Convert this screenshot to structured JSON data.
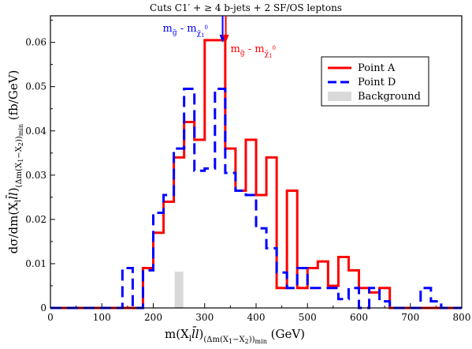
{
  "chart_data": {
    "type": "line",
    "title": "Cuts C1′ + ≥ 4 b-jets + 2 SF/OS leptons",
    "xlabel": "m(X_l l̄l)_(Δm(X1−X2))min  (GeV)",
    "ylabel": "dσ/dm(X_l l̄l)_(Δm(X1−X2))min  (fb/GeV)",
    "xlim": [
      0,
      800
    ],
    "ylim": [
      0,
      0.066
    ],
    "xticks": [
      "0",
      "100",
      "200",
      "300",
      "400",
      "500",
      "600",
      "700",
      "800"
    ],
    "yticks": [
      "0",
      "0.01",
      "0.02",
      "0.03",
      "0.04",
      "0.05",
      "0.06"
    ],
    "legend_position": "top-right",
    "bin_width": 20,
    "series": [
      {
        "name": "Point A",
        "color": "#ff0000",
        "dash": "solid",
        "x": [
          180,
          200,
          220,
          240,
          260,
          280,
          300,
          320,
          340,
          360,
          380,
          400,
          420,
          440,
          460,
          480,
          500,
          520,
          540,
          560,
          580,
          600,
          620,
          640
        ],
        "values": [
          0.009,
          0.017,
          0.024,
          0.034,
          0.042,
          0.038,
          0.0605,
          0.0605,
          0.036,
          0.0265,
          0.038,
          0.0255,
          0.034,
          0.0045,
          0.0265,
          0.0045,
          0.009,
          0.0105,
          0.005,
          0.0115,
          0.0085,
          0.0045,
          0.0035,
          0.0045
        ]
      },
      {
        "name": "Point D",
        "color": "#0000ff",
        "dash": "dashed",
        "x": [
          140,
          180,
          200,
          220,
          240,
          260,
          280,
          300,
          320,
          340,
          360,
          380,
          400,
          420,
          440,
          460,
          480,
          500,
          520,
          540,
          560,
          580,
          620,
          640,
          720,
          740
        ],
        "values": [
          0.009,
          0.0085,
          0.0215,
          0.0255,
          0.036,
          0.0495,
          0.031,
          0.0315,
          0.0495,
          0.0305,
          0.0265,
          0.0255,
          0.018,
          0.0135,
          0.008,
          0.0045,
          0.009,
          0.0045,
          0.0045,
          0.0045,
          0.002,
          0.0045,
          0.0045,
          0.0015,
          0.0045,
          0.0015
        ]
      },
      {
        "name": "Background",
        "color": "#d9d9d9",
        "dash": "fill",
        "x": [
          240
        ],
        "values": [
          0.0082
        ]
      }
    ],
    "annotations": [
      {
        "text": "m",
        "sub_text": "g̃",
        "minus_text": " - m",
        "chi_text": "χ̃",
        "chi_sub": "1",
        "chi_sup": "0",
        "color": "#0000ff",
        "side": "left",
        "x": 338
      },
      {
        "text": "m",
        "sub_text": "g̃",
        "minus_text": " - m",
        "chi_text": "χ̃",
        "chi_sub": "1",
        "chi_sup": "0",
        "color": "#ff0000",
        "side": "right",
        "x": 338
      }
    ]
  }
}
